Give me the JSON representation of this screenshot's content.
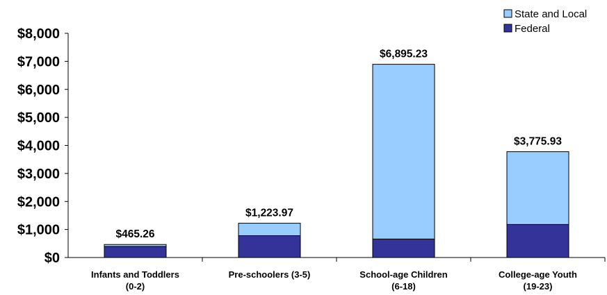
{
  "chart_data": {
    "type": "bar",
    "stacked": true,
    "categories": [
      [
        "Infants and Toddlers",
        "(0-2)"
      ],
      [
        "Pre-schoolers (3-5)"
      ],
      [
        "School-age Children",
        "(6-18)"
      ],
      [
        "College-age Youth",
        "(19-23)"
      ]
    ],
    "series": [
      {
        "name": "Federal",
        "color": "#333399",
        "values": [
          395,
          780,
          660,
          1180
        ]
      },
      {
        "name": "State and Local",
        "color": "#99ccff",
        "values": [
          70.26,
          443.97,
          6235.23,
          2595.93
        ]
      }
    ],
    "totals_labels": [
      "$465.26",
      "$1,223.97",
      "$6,895.23",
      "$3,775.93"
    ],
    "totals": [
      465.26,
      1223.97,
      6895.23,
      3775.93
    ],
    "ylim": [
      0,
      8000
    ],
    "yticks": [
      0,
      1000,
      2000,
      3000,
      4000,
      5000,
      6000,
      7000,
      8000
    ],
    "ytick_labels": [
      "$0",
      "$1,000",
      "$2,000",
      "$3,000",
      "$4,000",
      "$5,000",
      "$6,000",
      "$7,000",
      "$8,000"
    ],
    "legend": {
      "position": "top-right",
      "entries": [
        {
          "label": "State and Local",
          "color": "#99ccff"
        },
        {
          "label": "Federal",
          "color": "#333399"
        }
      ]
    },
    "grid": false
  }
}
